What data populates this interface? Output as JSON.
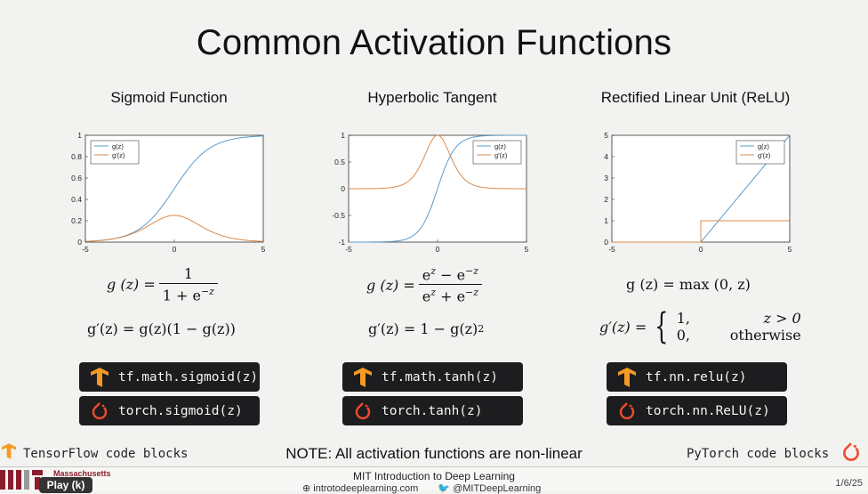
{
  "slide": {
    "title": "Common Activation Functions",
    "note": "NOTE: All activation functions are non-linear",
    "tensorflow_label": "TensorFlow code blocks",
    "pytorch_label": "PyTorch code blocks"
  },
  "columns": [
    {
      "title": "Sigmoid Function",
      "formula_g": {
        "lhs": "g (z) =",
        "num": "1",
        "den": "1 + e"
      },
      "formula_gp": "g′(z) = g(z)(1 − g(z))",
      "tf_code": "tf.math.sigmoid(z)",
      "torch_code": "torch.sigmoid(z)"
    },
    {
      "title": "Hyperbolic Tangent",
      "formula_g": {
        "lhs": "g (z) =",
        "num": "e",
        "den": "e"
      },
      "formula_gp": "g′(z) = 1 − g(z)",
      "tf_code": "tf.math.tanh(z)",
      "torch_code": "torch.tanh(z)"
    },
    {
      "title": "Rectified Linear Unit (ReLU)",
      "formula_g": {
        "lhs": "g (z) = max (0, z)"
      },
      "formula_gp": "g′(z) =",
      "cases": [
        {
          "value": "1,",
          "cond": "z > 0"
        },
        {
          "value": "0,",
          "cond": "otherwise"
        }
      ],
      "tf_code": "tf.nn.relu(z)",
      "torch_code": "torch.nn.ReLU(z)"
    }
  ],
  "chart_data": [
    {
      "type": "line",
      "xlim": [
        -5,
        5
      ],
      "ylim": [
        0,
        1
      ],
      "xticks": [
        "-5",
        "0",
        "5"
      ],
      "yticks": [
        "0",
        "0.2",
        "0.4",
        "0.6",
        "0.8",
        "1"
      ],
      "series": [
        {
          "name": "g(z)",
          "color": "#5b9bc8"
        },
        {
          "name": "g'(z)",
          "color": "#d98a4c"
        }
      ],
      "function": "sigmoid",
      "legend": "top-left"
    },
    {
      "type": "line",
      "xlim": [
        -5,
        5
      ],
      "ylim": [
        -1,
        1
      ],
      "xticks": [
        "-5",
        "0",
        "5"
      ],
      "yticks": [
        "-1",
        "-0.5",
        "0",
        "0.5",
        "1"
      ],
      "series": [
        {
          "name": "g(z)",
          "color": "#5b9bc8"
        },
        {
          "name": "g'(z)",
          "color": "#d98a4c"
        }
      ],
      "function": "tanh",
      "legend": "top-right"
    },
    {
      "type": "line",
      "xlim": [
        -5,
        5
      ],
      "ylim": [
        0,
        5
      ],
      "xticks": [
        "-5",
        "0",
        "5"
      ],
      "yticks": [
        "0",
        "1",
        "2",
        "3",
        "4",
        "5"
      ],
      "series": [
        {
          "name": "g(z)",
          "color": "#5b9bc8"
        },
        {
          "name": "g'(z)",
          "color": "#d98a4c"
        }
      ],
      "function": "relu",
      "legend": "top-right"
    }
  ],
  "footer": {
    "institution": "Massachusetts",
    "course": "MIT Introduction to Deep Learning",
    "website": "introtodeeplearning.com",
    "twitter": "@MITDeepLearning",
    "date": "1/6/25",
    "play_button": "Play (k)"
  },
  "colors": {
    "tf_orange": "#f59a23",
    "torch_red": "#ee4c2c",
    "code_bg": "#1d1d1f"
  }
}
